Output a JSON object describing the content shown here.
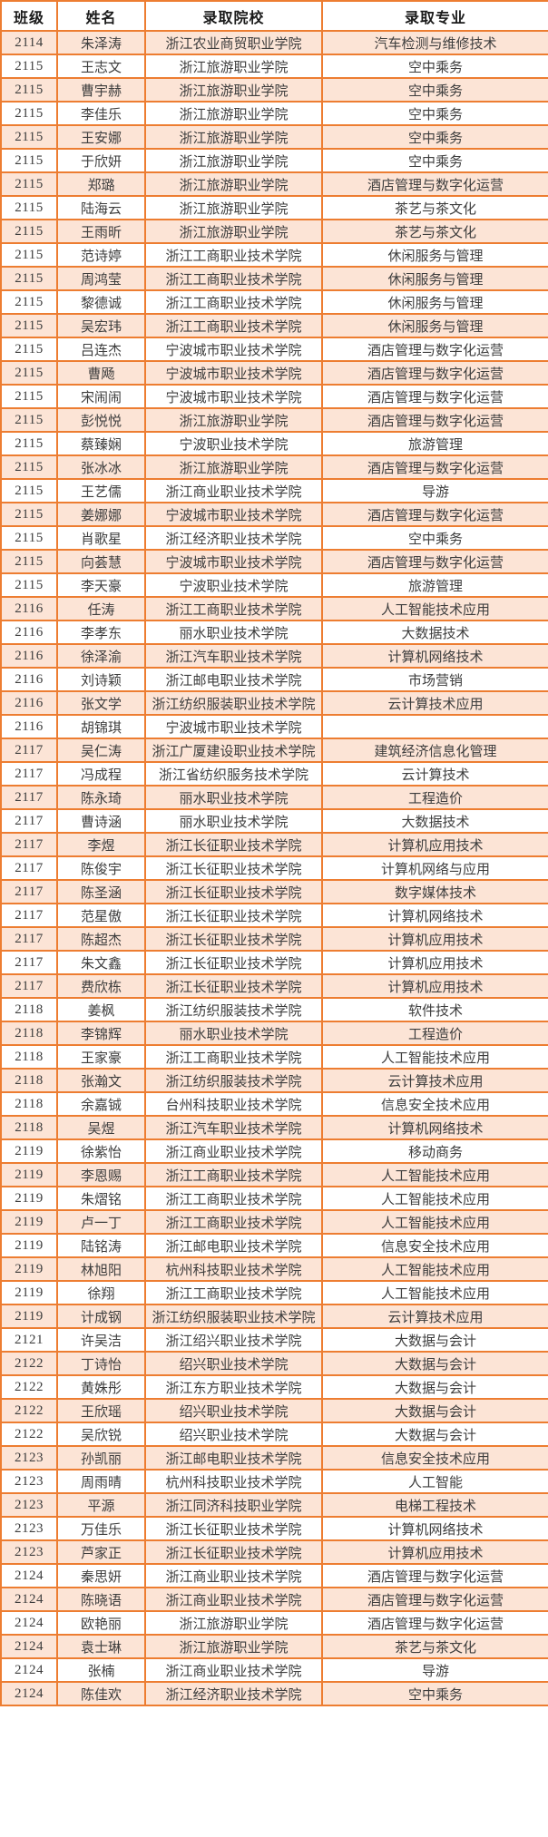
{
  "colors": {
    "border_accent": "#ED7D31",
    "row_shade": "#FCE4D6",
    "row_plain": "#FFFFFF",
    "header_text": "#1A1A1A",
    "body_text": "#3D3D3D"
  },
  "table": {
    "columns": [
      "班级",
      "姓名",
      "录取院校",
      "录取专业"
    ],
    "rows": [
      [
        "2114",
        "朱泽涛",
        "浙江农业商贸职业学院",
        "汽车检测与维修技术"
      ],
      [
        "2115",
        "王志文",
        "浙江旅游职业学院",
        "空中乘务"
      ],
      [
        "2115",
        "曹宇赫",
        "浙江旅游职业学院",
        "空中乘务"
      ],
      [
        "2115",
        "李佳乐",
        "浙江旅游职业学院",
        "空中乘务"
      ],
      [
        "2115",
        "王安娜",
        "浙江旅游职业学院",
        "空中乘务"
      ],
      [
        "2115",
        "于欣妍",
        "浙江旅游职业学院",
        "空中乘务"
      ],
      [
        "2115",
        "郑璐",
        "浙江旅游职业学院",
        "酒店管理与数字化运营"
      ],
      [
        "2115",
        "陆海云",
        "浙江旅游职业学院",
        "茶艺与茶文化"
      ],
      [
        "2115",
        "王雨昕",
        "浙江旅游职业学院",
        "茶艺与茶文化"
      ],
      [
        "2115",
        "范诗婷",
        "浙江工商职业技术学院",
        "休闲服务与管理"
      ],
      [
        "2115",
        "周鸿莹",
        "浙江工商职业技术学院",
        "休闲服务与管理"
      ],
      [
        "2115",
        "黎德诚",
        "浙江工商职业技术学院",
        "休闲服务与管理"
      ],
      [
        "2115",
        "吴宏玮",
        "浙江工商职业技术学院",
        "休闲服务与管理"
      ],
      [
        "2115",
        "吕连杰",
        "宁波城市职业技术学院",
        "酒店管理与数字化运营"
      ],
      [
        "2115",
        "曹飏",
        "宁波城市职业技术学院",
        "酒店管理与数字化运营"
      ],
      [
        "2115",
        "宋闹闹",
        "宁波城市职业技术学院",
        "酒店管理与数字化运营"
      ],
      [
        "2115",
        "彭悦悦",
        "浙江旅游职业学院",
        "酒店管理与数字化运营"
      ],
      [
        "2115",
        "蔡臻娴",
        "宁波职业技术学院",
        "旅游管理"
      ],
      [
        "2115",
        "张冰冰",
        "浙江旅游职业学院",
        "酒店管理与数字化运营"
      ],
      [
        "2115",
        "王艺儒",
        "浙江商业职业技术学院",
        "导游"
      ],
      [
        "2115",
        "姜娜娜",
        "宁波城市职业技术学院",
        "酒店管理与数字化运营"
      ],
      [
        "2115",
        "肖歌星",
        "浙江经济职业技术学院",
        "空中乘务"
      ],
      [
        "2115",
        "向荟慧",
        "宁波城市职业技术学院",
        "酒店管理与数字化运营"
      ],
      [
        "2115",
        "李天豪",
        "宁波职业技术学院",
        "旅游管理"
      ],
      [
        "2116",
        "任涛",
        "浙江工商职业技术学院",
        "人工智能技术应用"
      ],
      [
        "2116",
        "李孝东",
        "丽水职业技术学院",
        "大数据技术"
      ],
      [
        "2116",
        "徐泽渝",
        "浙江汽车职业技术学院",
        "计算机网络技术"
      ],
      [
        "2116",
        "刘诗颖",
        "浙江邮电职业技术学院",
        "市场营销"
      ],
      [
        "2116",
        "张文学",
        "浙江纺织服装职业技术学院",
        "云计算技术应用"
      ],
      [
        "2116",
        "胡锦琪",
        "宁波城市职业技术学院",
        ""
      ],
      [
        "2117",
        "吴仁涛",
        "浙江广厦建设职业技术学院",
        "建筑经济信息化管理"
      ],
      [
        "2117",
        "冯成程",
        "浙江省纺织服务技术学院",
        "云计算技术"
      ],
      [
        "2117",
        "陈永琦",
        "丽水职业技术学院",
        "工程造价"
      ],
      [
        "2117",
        "曹诗涵",
        "丽水职业技术学院",
        "大数据技术"
      ],
      [
        "2117",
        "李煜",
        "浙江长征职业技术学院",
        "计算机应用技术"
      ],
      [
        "2117",
        "陈俊宇",
        "浙江长征职业技术学院",
        "计算机网络与应用"
      ],
      [
        "2117",
        "陈圣涵",
        "浙江长征职业技术学院",
        "数字媒体技术"
      ],
      [
        "2117",
        "范星傲",
        "浙江长征职业技术学院",
        "计算机网络技术"
      ],
      [
        "2117",
        "陈超杰",
        "浙江长征职业技术学院",
        "计算机应用技术"
      ],
      [
        "2117",
        "朱文鑫",
        "浙江长征职业技术学院",
        "计算机应用技术"
      ],
      [
        "2117",
        "费欣栋",
        "浙江长征职业技术学院",
        "计算机应用技术"
      ],
      [
        "2118",
        "姜枫",
        "浙江纺织服装技术学院",
        "软件技术"
      ],
      [
        "2118",
        "李锦辉",
        "丽水职业技术学院",
        "工程造价"
      ],
      [
        "2118",
        "王家豪",
        "浙江工商职业技术学院",
        "人工智能技术应用"
      ],
      [
        "2118",
        "张瀚文",
        "浙江纺织服装技术学院",
        "云计算技术应用"
      ],
      [
        "2118",
        "余嘉铖",
        "台州科技职业技术学院",
        "信息安全技术应用"
      ],
      [
        "2118",
        "吴煜",
        "浙江汽车职业技术学院",
        "计算机网络技术"
      ],
      [
        "2119",
        "徐紫怡",
        "浙江商业职业技术学院",
        "移动商务"
      ],
      [
        "2119",
        "李恩赐",
        "浙江工商职业技术学院",
        "人工智能技术应用"
      ],
      [
        "2119",
        "朱熠铭",
        "浙江工商职业技术学院",
        "人工智能技术应用"
      ],
      [
        "2119",
        "卢一丁",
        "浙江工商职业技术学院",
        "人工智能技术应用"
      ],
      [
        "2119",
        "陆铭涛",
        "浙江邮电职业技术学院",
        "信息安全技术应用"
      ],
      [
        "2119",
        "林旭阳",
        "杭州科技职业技术学院",
        "人工智能技术应用"
      ],
      [
        "2119",
        "徐翔",
        "浙江工商职业技术学院",
        "人工智能技术应用"
      ],
      [
        "2119",
        "计成钢",
        "浙江纺织服装职业技术学院",
        "云计算技术应用"
      ],
      [
        "2121",
        "许吴洁",
        "浙江绍兴职业技术学院",
        "大数据与会计"
      ],
      [
        "2122",
        "丁诗怡",
        "绍兴职业技术学院",
        "大数据与会计"
      ],
      [
        "2122",
        "黄姝彤",
        "浙江东方职业技术学院",
        "大数据与会计"
      ],
      [
        "2122",
        "王欣瑶",
        "绍兴职业技术学院",
        "大数据与会计"
      ],
      [
        "2122",
        "吴欣锐",
        "绍兴职业技术学院",
        "大数据与会计"
      ],
      [
        "2123",
        "孙凯丽",
        "浙江邮电职业技术学院",
        "信息安全技术应用"
      ],
      [
        "2123",
        "周雨晴",
        "杭州科技职业技术学院",
        "人工智能"
      ],
      [
        "2123",
        "平源",
        "浙江同济科技职业学院",
        "电梯工程技术"
      ],
      [
        "2123",
        "万佳乐",
        "浙江长征职业技术学院",
        "计算机网络技术"
      ],
      [
        "2123",
        "芦家正",
        "浙江长征职业技术学院",
        "计算机应用技术"
      ],
      [
        "2124",
        "秦思妍",
        "浙江商业职业技术学院",
        "酒店管理与数字化运营"
      ],
      [
        "2124",
        "陈晓语",
        "浙江商业职业技术学院",
        "酒店管理与数字化运营"
      ],
      [
        "2124",
        "欧艳丽",
        "浙江旅游职业学院",
        "酒店管理与数字化运营"
      ],
      [
        "2124",
        "袁士琳",
        "浙江旅游职业学院",
        "茶艺与茶文化"
      ],
      [
        "2124",
        "张楠",
        "浙江商业职业技术学院",
        "导游"
      ],
      [
        "2124",
        "陈佳欢",
        "浙江经济职业技术学院",
        "空中乘务"
      ]
    ]
  }
}
